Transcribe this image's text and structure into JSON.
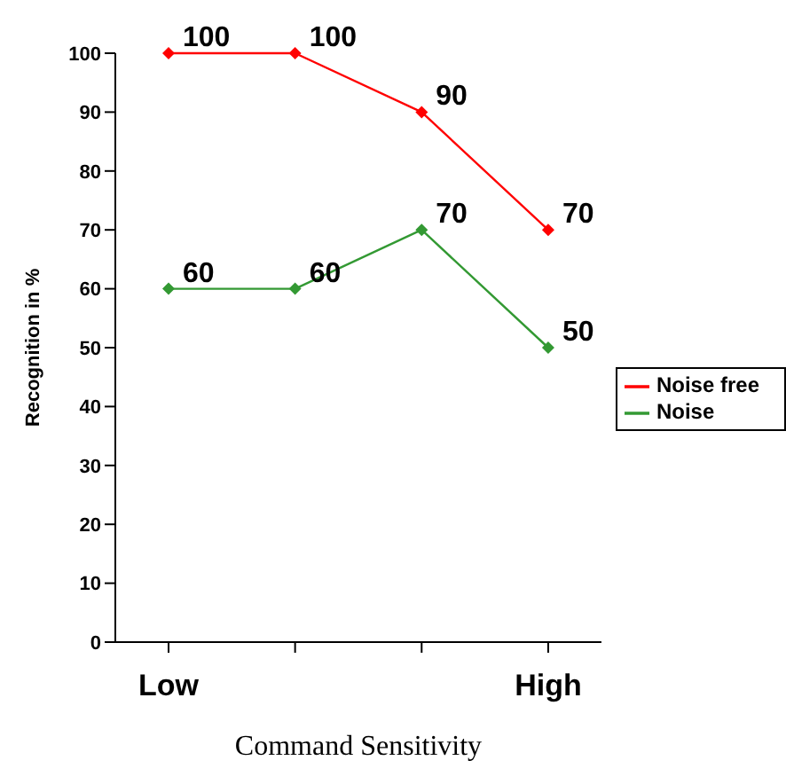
{
  "chart_data": {
    "type": "line",
    "xlabel": "Command Sensitivity",
    "ylabel": "Recognition in %",
    "categories": [
      "Low",
      null,
      null,
      "High"
    ],
    "series": [
      {
        "name": "Noise free",
        "color": "#ff0000",
        "values": [
          100,
          100,
          90,
          70
        ]
      },
      {
        "name": "Noise",
        "color": "#339933",
        "values": [
          60,
          60,
          70,
          50
        ]
      }
    ],
    "ylim": [
      0,
      100
    ],
    "yticks": [
      0,
      10,
      20,
      30,
      40,
      50,
      60,
      70,
      80,
      90,
      100
    ],
    "grid": false,
    "legend": "right",
    "marker": "diamond",
    "data_labels": true
  }
}
